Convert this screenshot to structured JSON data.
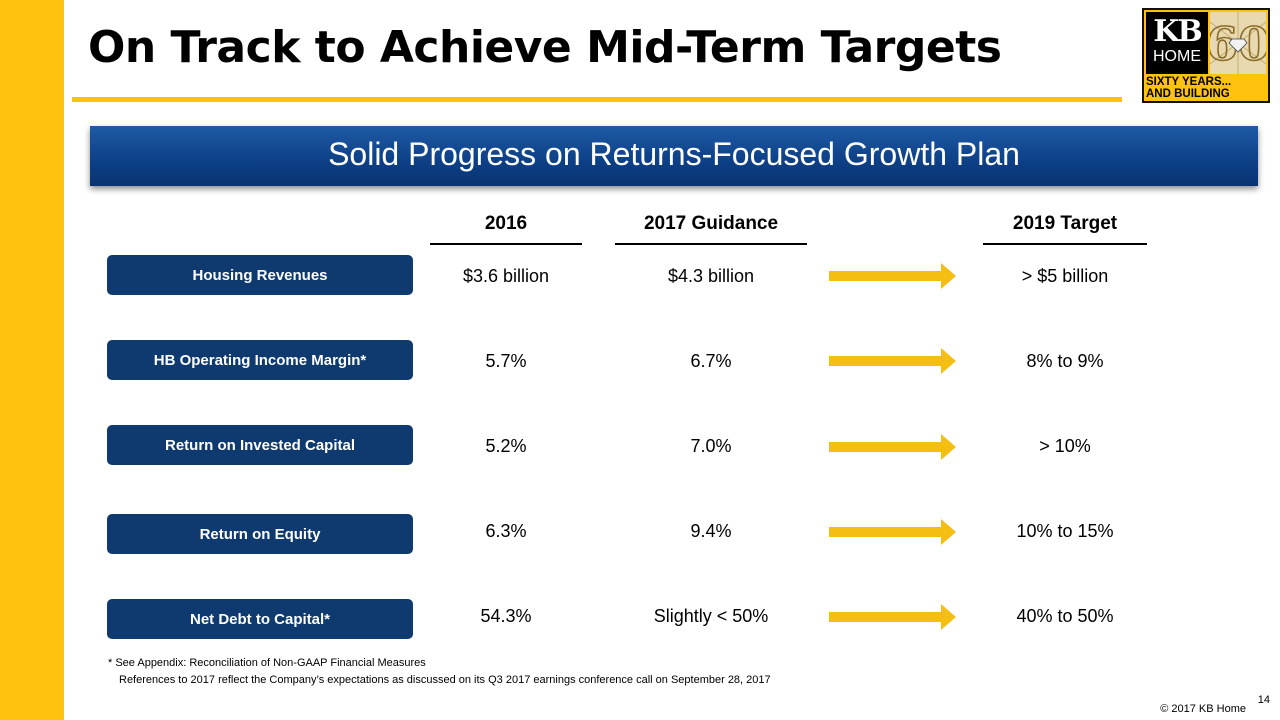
{
  "slide": {
    "title": "On Track to Achieve Mid-Term Targets",
    "banner": "Solid Progress on Returns-Focused Growth Plan",
    "columns": {
      "c2016": "2016",
      "c2017": "2017 Guidance",
      "c2019": "2019 Target"
    },
    "rows": [
      {
        "label": "Housing Revenues",
        "v2016": "$3.6 billion",
        "v2017": "$4.3 billion",
        "v2019": "> $5 billion"
      },
      {
        "label": "HB Operating Income Margin*",
        "v2016": "5.7%",
        "v2017": "6.7%",
        "v2019": "8% to 9%"
      },
      {
        "label": "Return on Invested Capital",
        "v2016": "5.2%",
        "v2017": "7.0%",
        "v2019": "> 10%"
      },
      {
        "label": "Return on Equity",
        "v2016": "6.3%",
        "v2017": "9.4%",
        "v2019": "10% to 15%"
      },
      {
        "label": "Net Debt to Capital*",
        "v2016": "54.3%",
        "v2017": "Slightly < 50%",
        "v2019": "40% to 50%"
      }
    ],
    "footnotes": {
      "line1": "* See Appendix: Reconciliation of Non-GAAP Financial Measures",
      "line2": "References to 2017 reflect the Company’s expectations as discussed on its Q3 2017 earnings conference call on September 28, 2017"
    },
    "page_number": "14",
    "copyright": "© 2017 KB Home"
  },
  "logo": {
    "kb": "KB",
    "home": "HOME",
    "sixty": "60",
    "tagline_line1": "SIXTY YEARS...",
    "tagline_line2": "AND BUILDING"
  },
  "colors": {
    "accent_yellow": "#ffc20e",
    "navy": "#0f3a6f",
    "banner_blue": "#0c3f86",
    "arrow_yellow": "#f5be12"
  }
}
